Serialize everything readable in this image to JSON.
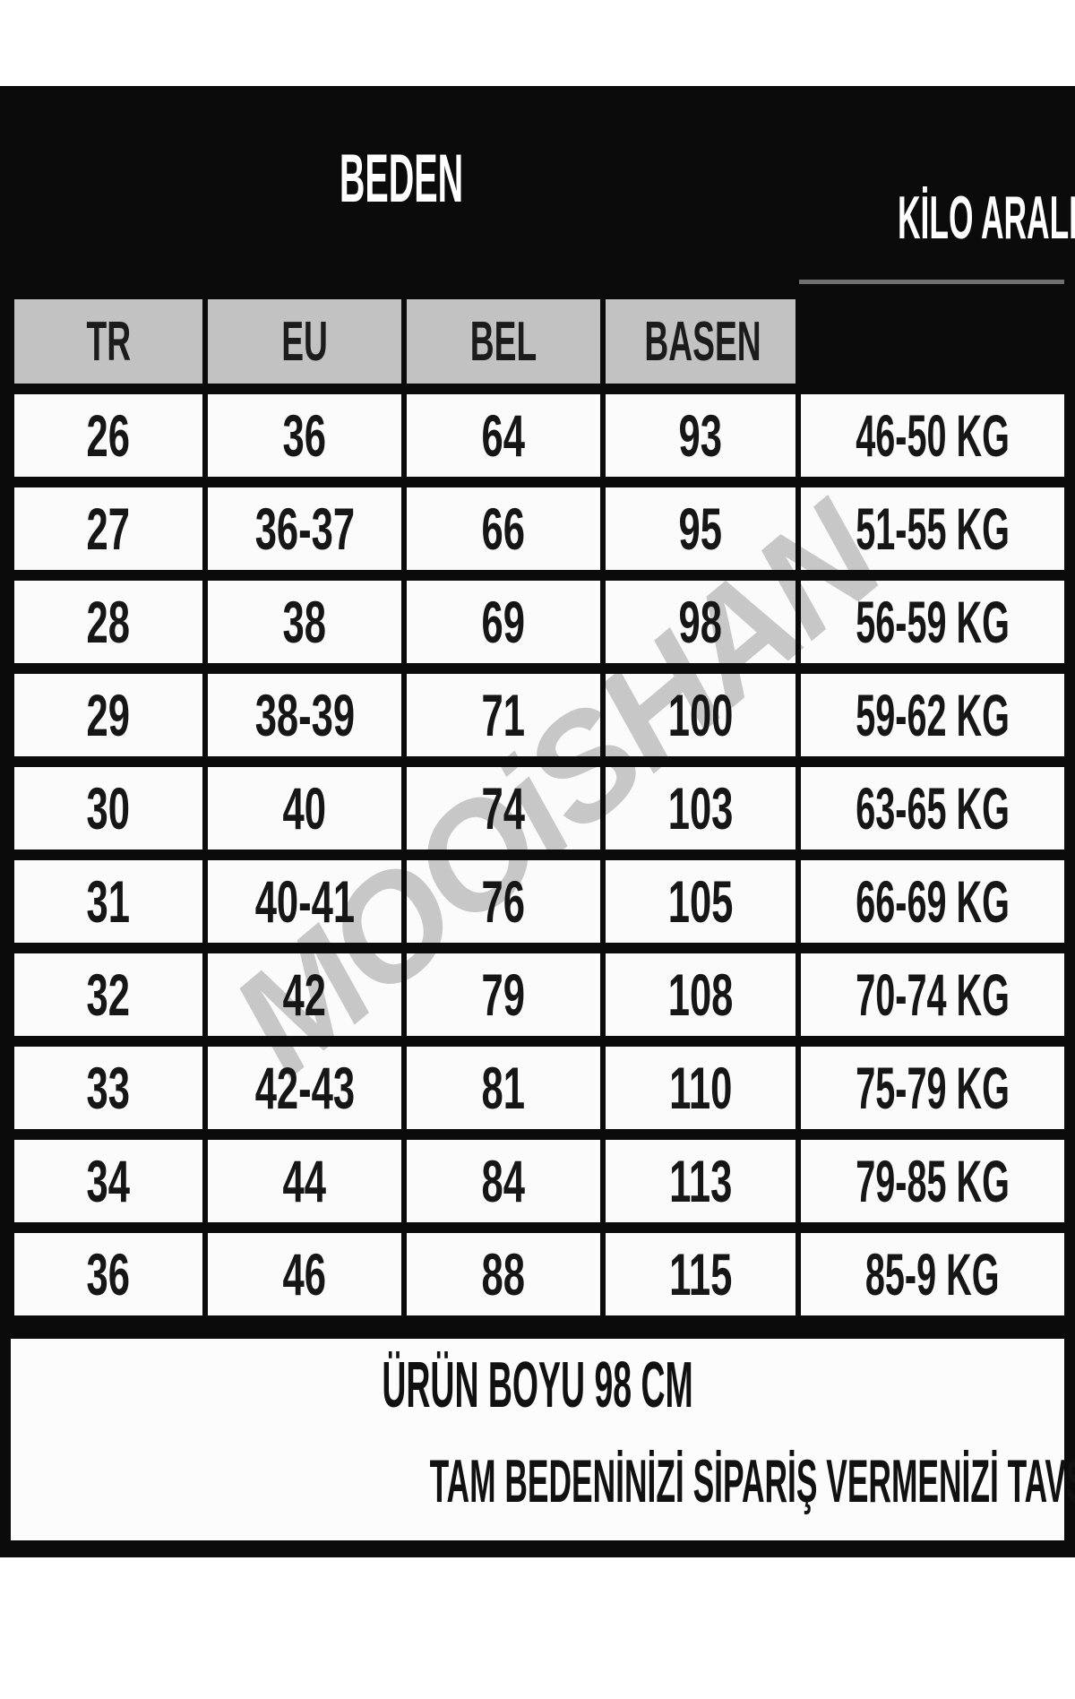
{
  "titles": {
    "size": "BEDEN",
    "weight_range": "KİLO ARALIĞI"
  },
  "table": {
    "headers": [
      "TR",
      "EU",
      "BEL",
      "BASEN",
      ""
    ],
    "rows": [
      [
        "26",
        "36",
        "64",
        "93",
        "46-50 KG"
      ],
      [
        "27",
        "36-37",
        "66",
        "95",
        "51-55 KG"
      ],
      [
        "28",
        "38",
        "69",
        "98",
        "56-59 KG"
      ],
      [
        "29",
        "38-39",
        "71",
        "100",
        "59-62 KG"
      ],
      [
        "30",
        "40",
        "74",
        "103",
        "63-65 KG"
      ],
      [
        "31",
        "40-41",
        "76",
        "105",
        "66-69 KG"
      ],
      [
        "32",
        "42",
        "79",
        "108",
        "70-74 KG"
      ],
      [
        "33",
        "42-43",
        "81",
        "110",
        "75-79 KG"
      ],
      [
        "34",
        "44",
        "84",
        "113",
        "79-85 KG"
      ],
      [
        "36",
        "46",
        "88",
        "115",
        "85-9 KG"
      ]
    ]
  },
  "watermark": {
    "text": "MOOiSHAN"
  },
  "footer": {
    "line1": "ÜRÜN BOYU 98 CM",
    "line2": "TAM BEDENİNİZİ SİPARİŞ VERMENİZİ TAVSİYE EDİYORUZ..."
  },
  "colors": {
    "panel_black": "#0b0b0b",
    "header_cell_gray": "#c2c2c2",
    "cell_white": "#fbfbfb",
    "title_white": "#ffffff",
    "watermark_gray": "#c7c7c7",
    "underline_gray": "#6f6f6f"
  }
}
